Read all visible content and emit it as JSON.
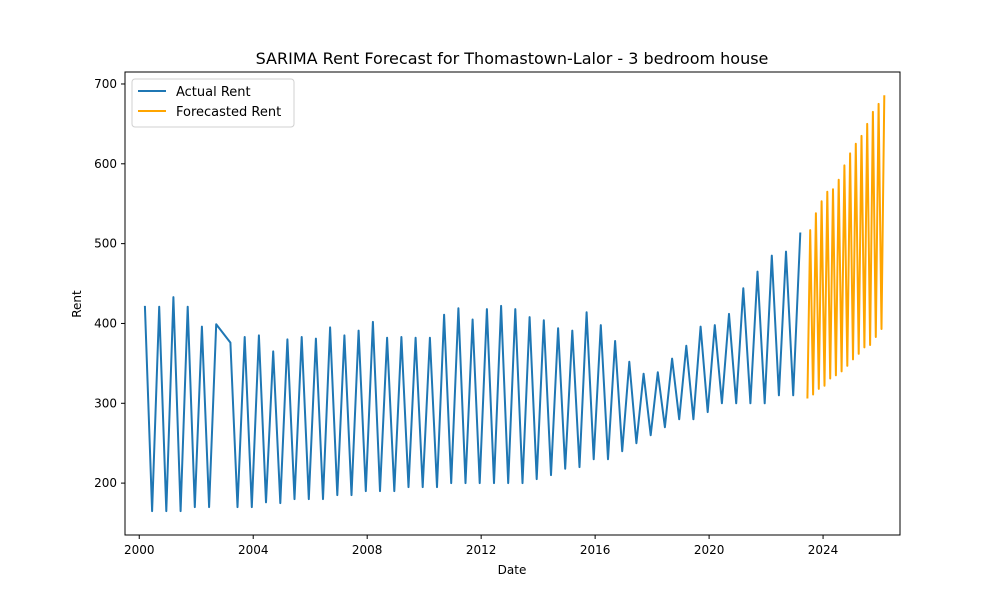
{
  "chart_data": {
    "type": "line",
    "title": "SARIMA Rent Forecast for Thomastown-Lalor - 3 bedroom house",
    "xlabel": "Date",
    "ylabel": "Rent",
    "xlim": [
      1999.5,
      2026.7
    ],
    "ylim": [
      135,
      715
    ],
    "xticks": [
      2000,
      2004,
      2008,
      2012,
      2016,
      2020,
      2024
    ],
    "yticks": [
      200,
      300,
      400,
      500,
      600,
      700
    ],
    "grid": false,
    "legend": "top-left",
    "series": [
      {
        "name": "Actual Rent",
        "color": "#1f77b4",
        "x": [
          2000.2,
          2000.45,
          2000.7,
          2000.95,
          2001.2,
          2001.45,
          2001.7,
          2001.95,
          2002.2,
          2002.45,
          2002.7,
          2003.2,
          2003.45,
          2003.7,
          2003.95,
          2004.2,
          2004.45,
          2004.7,
          2004.95,
          2005.2,
          2005.45,
          2005.7,
          2005.95,
          2006.2,
          2006.45,
          2006.7,
          2006.95,
          2007.2,
          2007.45,
          2007.7,
          2007.95,
          2008.2,
          2008.45,
          2008.7,
          2008.95,
          2009.2,
          2009.45,
          2009.7,
          2009.95,
          2010.2,
          2010.45,
          2010.7,
          2010.95,
          2011.2,
          2011.45,
          2011.7,
          2011.95,
          2012.2,
          2012.45,
          2012.7,
          2012.95,
          2013.2,
          2013.45,
          2013.7,
          2013.95,
          2014.2,
          2014.45,
          2014.7,
          2014.95,
          2015.2,
          2015.45,
          2015.7,
          2015.95,
          2016.2,
          2016.45,
          2016.7,
          2016.95,
          2017.2,
          2017.45,
          2017.7,
          2017.95,
          2018.2,
          2018.45,
          2018.7,
          2018.95,
          2019.2,
          2019.45,
          2019.7,
          2019.95,
          2020.2,
          2020.45,
          2020.7,
          2020.95,
          2021.2,
          2021.45,
          2021.7,
          2021.95,
          2022.2,
          2022.45,
          2022.7,
          2022.95,
          2023.2
        ],
        "y": [
          422,
          165,
          421,
          165,
          433,
          165,
          421,
          170,
          396,
          170,
          399,
          376,
          170,
          383,
          170,
          385,
          176,
          365,
          175,
          380,
          180,
          383,
          180,
          381,
          180,
          395,
          185,
          385,
          185,
          391,
          190,
          402,
          190,
          382,
          190,
          383,
          195,
          382,
          195,
          382,
          195,
          411,
          200,
          419,
          200,
          405,
          200,
          418,
          200,
          422,
          200,
          418,
          200,
          408,
          205,
          404,
          210,
          394,
          218,
          391,
          220,
          414,
          230,
          398,
          230,
          378,
          240,
          352,
          250,
          337,
          260,
          339,
          270,
          356,
          280,
          372,
          280,
          396,
          289,
          398,
          300,
          412,
          300,
          444,
          300,
          465,
          300,
          485,
          310,
          490,
          310,
          514
        ]
      },
      {
        "name": "Forecasted Rent",
        "color": "#ffa500",
        "x": [
          2023.45,
          2023.55,
          2023.65,
          2023.75,
          2023.85,
          2023.95,
          2024.05,
          2024.15,
          2024.25,
          2024.35,
          2024.45,
          2024.55,
          2024.65,
          2024.75,
          2024.85,
          2024.95,
          2025.05,
          2025.15,
          2025.25,
          2025.35,
          2025.45,
          2025.55,
          2025.65,
          2025.75,
          2025.85,
          2025.95,
          2026.05,
          2026.15
        ],
        "y": [
          306,
          517,
          311,
          538,
          318,
          553,
          322,
          565,
          331,
          568,
          335,
          580,
          340,
          598,
          347,
          613,
          355,
          625,
          362,
          635,
          370,
          650,
          373,
          665,
          383,
          675,
          393,
          686
        ]
      }
    ]
  }
}
